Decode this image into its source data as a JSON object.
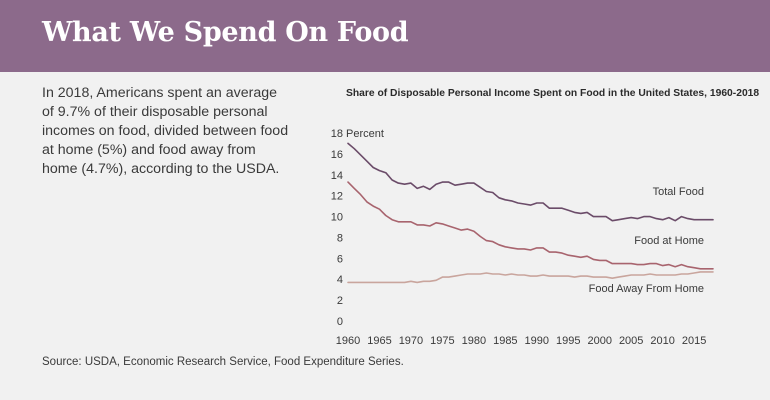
{
  "header": {
    "title": "What We Spend On Food"
  },
  "intro": {
    "text": "In 2018, Americans spent an average of 9.7% of their disposable personal incomes on food, divided between food at home (5%) and food away from home (4.7%), according to the USDA."
  },
  "source": {
    "text": "Source: USDA, Economic Research Service, Food Expenditure Series."
  },
  "colors": {
    "banner": "#8c6a8b",
    "total_food": "#6b4c69",
    "food_at_home": "#a8646e",
    "food_away": "#c9a59d"
  },
  "chart_data": {
    "type": "line",
    "title": "Share of Disposable Personal Income Spent on Food in the United States, 1960-2018",
    "ylabel": "Percent",
    "xlabel": "",
    "xlim": [
      1960,
      2018
    ],
    "ylim": [
      0,
      18
    ],
    "yticks": [
      0,
      2,
      4,
      6,
      8,
      10,
      12,
      14,
      16,
      18
    ],
    "xticks": [
      1960,
      1965,
      1970,
      1975,
      1980,
      1985,
      1990,
      1995,
      2000,
      2005,
      2010,
      2015
    ],
    "x": [
      1960,
      1961,
      1962,
      1963,
      1964,
      1965,
      1966,
      1967,
      1968,
      1969,
      1970,
      1971,
      1972,
      1973,
      1974,
      1975,
      1976,
      1977,
      1978,
      1979,
      1980,
      1981,
      1982,
      1983,
      1984,
      1985,
      1986,
      1987,
      1988,
      1989,
      1990,
      1991,
      1992,
      1993,
      1994,
      1995,
      1996,
      1997,
      1998,
      1999,
      2000,
      2001,
      2002,
      2003,
      2004,
      2005,
      2006,
      2007,
      2008,
      2009,
      2010,
      2011,
      2012,
      2013,
      2014,
      2015,
      2016,
      2017,
      2018
    ],
    "series": [
      {
        "name": "Total Food",
        "values": [
          17.0,
          16.5,
          15.9,
          15.3,
          14.7,
          14.4,
          14.2,
          13.5,
          13.2,
          13.1,
          13.2,
          12.7,
          12.9,
          12.6,
          13.1,
          13.3,
          13.3,
          13.0,
          13.1,
          13.2,
          13.2,
          12.8,
          12.4,
          12.3,
          11.8,
          11.6,
          11.5,
          11.3,
          11.2,
          11.1,
          11.3,
          11.3,
          10.8,
          10.8,
          10.8,
          10.6,
          10.4,
          10.3,
          10.4,
          10.0,
          10.0,
          10.0,
          9.6,
          9.7,
          9.8,
          9.9,
          9.8,
          10.0,
          10.0,
          9.8,
          9.7,
          9.9,
          9.6,
          10.0,
          9.8,
          9.7,
          9.7,
          9.7,
          9.7
        ]
      },
      {
        "name": "Food at Home",
        "values": [
          13.3,
          12.7,
          12.1,
          11.4,
          11.0,
          10.7,
          10.1,
          9.7,
          9.5,
          9.5,
          9.5,
          9.2,
          9.2,
          9.1,
          9.4,
          9.3,
          9.1,
          8.9,
          8.7,
          8.8,
          8.6,
          8.1,
          7.7,
          7.6,
          7.3,
          7.1,
          7.0,
          6.9,
          6.9,
          6.8,
          7.0,
          7.0,
          6.6,
          6.6,
          6.5,
          6.3,
          6.2,
          6.1,
          6.2,
          5.9,
          5.8,
          5.8,
          5.5,
          5.5,
          5.5,
          5.5,
          5.4,
          5.4,
          5.5,
          5.5,
          5.3,
          5.4,
          5.2,
          5.4,
          5.2,
          5.1,
          5.0,
          5.0,
          5.0
        ]
      },
      {
        "name": "Food Away From Home",
        "values": [
          3.7,
          3.7,
          3.7,
          3.7,
          3.7,
          3.7,
          3.7,
          3.7,
          3.7,
          3.7,
          3.8,
          3.7,
          3.8,
          3.8,
          3.9,
          4.2,
          4.2,
          4.3,
          4.4,
          4.5,
          4.5,
          4.5,
          4.6,
          4.5,
          4.5,
          4.4,
          4.5,
          4.4,
          4.4,
          4.3,
          4.3,
          4.4,
          4.3,
          4.3,
          4.3,
          4.3,
          4.2,
          4.3,
          4.3,
          4.2,
          4.2,
          4.2,
          4.1,
          4.2,
          4.3,
          4.4,
          4.4,
          4.4,
          4.5,
          4.4,
          4.4,
          4.4,
          4.4,
          4.5,
          4.5,
          4.6,
          4.7,
          4.7,
          4.7
        ]
      }
    ]
  }
}
